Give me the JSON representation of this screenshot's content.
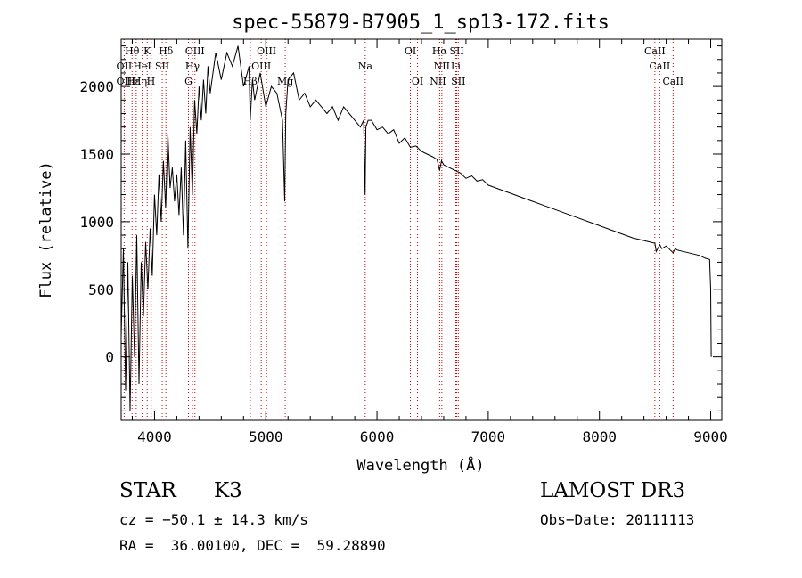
{
  "chart_data": {
    "type": "line",
    "title": "spec-55879-B7905_1_sp13-172.fits",
    "xlabel": "Wavelength (Å)",
    "ylabel": "Flux (relative)",
    "xlim": [
      3700,
      9100
    ],
    "ylim": [
      -470,
      2350
    ],
    "xticks": [
      4000,
      5000,
      6000,
      7000,
      8000,
      9000
    ],
    "yticks": [
      0,
      500,
      1000,
      1500,
      2000
    ],
    "grid": false,
    "series": [
      {
        "name": "flux",
        "x": [
          3700,
          3720,
          3740,
          3760,
          3780,
          3800,
          3820,
          3840,
          3860,
          3880,
          3900,
          3920,
          3940,
          3960,
          3980,
          4000,
          4020,
          4040,
          4060,
          4080,
          4100,
          4120,
          4140,
          4160,
          4180,
          4200,
          4220,
          4240,
          4260,
          4280,
          4300,
          4320,
          4340,
          4360,
          4380,
          4400,
          4420,
          4440,
          4460,
          4480,
          4500,
          4550,
          4600,
          4650,
          4700,
          4750,
          4800,
          4850,
          4860,
          4880,
          4900,
          4950,
          5000,
          5050,
          5100,
          5150,
          5170,
          5180,
          5200,
          5250,
          5300,
          5350,
          5400,
          5450,
          5500,
          5550,
          5600,
          5650,
          5700,
          5750,
          5800,
          5850,
          5880,
          5893,
          5900,
          5920,
          5950,
          6000,
          6050,
          6100,
          6150,
          6200,
          6250,
          6300,
          6350,
          6400,
          6450,
          6500,
          6540,
          6563,
          6580,
          6600,
          6650,
          6700,
          6750,
          6800,
          6850,
          6900,
          6950,
          7000,
          7100,
          7200,
          7300,
          7400,
          7500,
          7600,
          7700,
          7800,
          7900,
          8000,
          8100,
          8200,
          8300,
          8400,
          8498,
          8510,
          8542,
          8560,
          8600,
          8662,
          8680,
          8700,
          8750,
          8800,
          8850,
          8900,
          8950,
          8990,
          9000,
          9005
        ],
        "values": [
          150,
          800,
          -250,
          700,
          -400,
          600,
          0,
          900,
          -200,
          700,
          300,
          850,
          500,
          950,
          600,
          1200,
          900,
          1350,
          1000,
          1450,
          1100,
          1650,
          1250,
          1400,
          1150,
          1350,
          1050,
          1400,
          900,
          1600,
          800,
          1700,
          1200,
          1900,
          1650,
          2000,
          1750,
          2050,
          1800,
          2150,
          1950,
          2250,
          2050,
          2250,
          2150,
          2300,
          2000,
          2150,
          1750,
          2050,
          1900,
          2100,
          1850,
          2000,
          1950,
          1750,
          1150,
          1800,
          2050,
          2100,
          1900,
          1950,
          1850,
          1900,
          1850,
          1800,
          1850,
          1750,
          1850,
          1800,
          1750,
          1700,
          1750,
          1200,
          1700,
          1750,
          1750,
          1680,
          1700,
          1650,
          1680,
          1580,
          1620,
          1550,
          1560,
          1520,
          1500,
          1480,
          1460,
          1380,
          1450,
          1420,
          1400,
          1380,
          1360,
          1320,
          1340,
          1300,
          1310,
          1270,
          1240,
          1210,
          1180,
          1150,
          1120,
          1090,
          1060,
          1030,
          1000,
          970,
          940,
          910,
          880,
          860,
          840,
          780,
          830,
          800,
          820,
          770,
          800,
          790,
          780,
          770,
          760,
          750,
          730,
          720,
          500,
          0
        ]
      }
    ],
    "lines": [
      {
        "name": "Hθ",
        "x": 3798
      },
      {
        "name": "Hη",
        "x": 3835
      },
      {
        "name": "OII",
        "x": 3727
      },
      {
        "name": "K",
        "x": 3934
      },
      {
        "name": "H",
        "x": 3968
      },
      {
        "name": "Hε",
        "x": 3970
      },
      {
        "name": "HeI",
        "x": 3889
      },
      {
        "name": "SII",
        "x": 4069
      },
      {
        "name": "Hδ",
        "x": 4102
      },
      {
        "name": "Hγ",
        "x": 4341
      },
      {
        "name": "G",
        "x": 4305
      },
      {
        "name": "OIII",
        "x": 4363
      },
      {
        "name": "Hβ",
        "x": 4861
      },
      {
        "name": "OIII",
        "x": 4959
      },
      {
        "name": "OIII",
        "x": 5007
      },
      {
        "name": "Mg",
        "x": 5175
      },
      {
        "name": "Na",
        "x": 5894
      },
      {
        "name": "OI",
        "x": 6300
      },
      {
        "name": "OI",
        "x": 6364
      },
      {
        "name": "NII",
        "x": 6548
      },
      {
        "name": "Hα",
        "x": 6563
      },
      {
        "name": "NII",
        "x": 6583
      },
      {
        "name": "Li",
        "x": 6708
      },
      {
        "name": "SII",
        "x": 6717
      },
      {
        "name": "SII",
        "x": 6731
      },
      {
        "name": "CaII",
        "x": 8498
      },
      {
        "name": "CaII",
        "x": 8542
      },
      {
        "name": "CaII",
        "x": 8662
      }
    ],
    "line_labels": [
      {
        "text": "Hθ",
        "x": 3798,
        "row": 1
      },
      {
        "text": "K",
        "x": 3934,
        "row": 1
      },
      {
        "text": "Hδ",
        "x": 4102,
        "row": 1
      },
      {
        "text": "OII",
        "x": 3727,
        "row": 2
      },
      {
        "text": "HeI",
        "x": 3889,
        "row": 2
      },
      {
        "text": "SII",
        "x": 4069,
        "row": 2
      },
      {
        "text": "OII",
        "x": 3727,
        "row": 3
      },
      {
        "text": "Hε",
        "x": 3810,
        "row": 3
      },
      {
        "text": "Hη",
        "x": 3868,
        "row": 3
      },
      {
        "text": "H",
        "x": 3968,
        "row": 3
      },
      {
        "text": "OIII",
        "x": 4363,
        "row": 1
      },
      {
        "text": "Hγ",
        "x": 4341,
        "row": 2
      },
      {
        "text": "G",
        "x": 4305,
        "row": 3
      },
      {
        "text": "OIII",
        "x": 5007,
        "row": 1
      },
      {
        "text": "OIII",
        "x": 4959,
        "row": 2
      },
      {
        "text": "Hβ",
        "x": 4861,
        "row": 3
      },
      {
        "text": "Mg",
        "x": 5175,
        "row": 3
      },
      {
        "text": "Na",
        "x": 5894,
        "row": 2
      },
      {
        "text": "OI",
        "x": 6300,
        "row": 1
      },
      {
        "text": "OI",
        "x": 6364,
        "row": 3
      },
      {
        "text": "Hα",
        "x": 6563,
        "row": 1
      },
      {
        "text": "SII",
        "x": 6717,
        "row": 1
      },
      {
        "text": "NII",
        "x": 6583,
        "row": 2
      },
      {
        "text": "Li",
        "x": 6708,
        "row": 2
      },
      {
        "text": "NII",
        "x": 6548,
        "row": 3
      },
      {
        "text": "SII",
        "x": 6731,
        "row": 3
      },
      {
        "text": "CaII",
        "x": 8498,
        "row": 1
      },
      {
        "text": "CaII",
        "x": 8542,
        "row": 2
      },
      {
        "text": "CaII",
        "x": 8662,
        "row": 3
      }
    ]
  },
  "info": {
    "object_class": "STAR",
    "subclass": "K3",
    "survey": "LAMOST DR3",
    "cz": "cz = −50.1 ± 14.3 km/s",
    "obs_date": "Obs−Date: 20111113",
    "coords": "RA =  36.00100, DEC =  59.28890"
  }
}
